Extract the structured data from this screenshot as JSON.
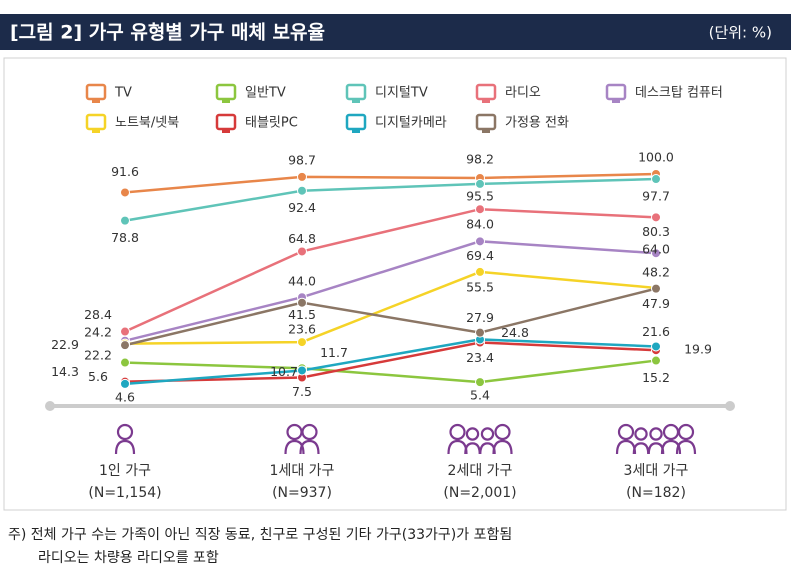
{
  "chart_data": {
    "type": "line",
    "title": "[그림 2]  가구 유형별 가구 매체 보유율",
    "unit": "(단위: %)",
    "categories": [
      "1인 가구",
      "1세대 가구",
      "2세대 가구",
      "3세대 가구"
    ],
    "sample_sizes": [
      "(N=1,154)",
      "(N=937)",
      "(N=2,001)",
      "(N=182)"
    ],
    "series": [
      {
        "name": "TV",
        "color": "#e8864a",
        "values": [
          91.6,
          98.7,
          98.2,
          100
        ],
        "value_labels": [
          "91.6",
          "98.7",
          "98.2",
          "100.0"
        ]
      },
      {
        "name": "일반TV",
        "color": "#8cc63f",
        "values": [
          14.3,
          11.7,
          5.4,
          15.2
        ],
        "value_labels": [
          "14.3",
          "11.7",
          "5.4",
          "15.2"
        ]
      },
      {
        "name": "디지털TV",
        "color": "#5fc4b8",
        "values": [
          78.8,
          92.4,
          95.5,
          97.7
        ],
        "value_labels": [
          "78.8",
          "92.4",
          "95.5",
          "97.7"
        ]
      },
      {
        "name": "라디오",
        "color": "#e8717a",
        "values": [
          28.4,
          64.8,
          84,
          80.3
        ],
        "value_labels": [
          "28.4",
          "64.8",
          "84.0",
          "80.3"
        ]
      },
      {
        "name": "데스크탑 컴퓨터",
        "color": "#a784c4",
        "values": [
          24.2,
          44,
          69.4,
          64
        ],
        "value_labels": [
          "24.2",
          "44.0",
          "69.4",
          "64.0"
        ]
      },
      {
        "name": "노트북/넷북",
        "color": "#f5d327",
        "values": [
          22.9,
          23.6,
          55.5,
          48.2
        ],
        "value_labels": [
          "22.9",
          "23.6",
          "55.5",
          "48.2"
        ]
      },
      {
        "name": "태블릿PC",
        "color": "#d63a3a",
        "values": [
          5.6,
          7.5,
          23.4,
          19.9
        ],
        "value_labels": [
          "5.6",
          "7.5",
          "23.4",
          "19.9"
        ]
      },
      {
        "name": "디지털카메라",
        "color": "#1fa7c0",
        "values": [
          4.6,
          10.7,
          24.8,
          21.6
        ],
        "value_labels": [
          "4.6",
          "10.7",
          "24.8",
          "21.6"
        ]
      },
      {
        "name": "가정용 전화",
        "color": "#8b7665",
        "values": [
          22.2,
          41.5,
          27.9,
          47.9
        ],
        "value_labels": [
          "22.2",
          "41.5",
          "27.9",
          "47.9"
        ]
      }
    ],
    "notes": [
      "주) 전체 가구 수는 가족이 아닌 직장 동료, 친구로 구성된 기타 가구(33가구)가 포함됨",
      "라디오는 차량용 라디오를 포함"
    ]
  }
}
